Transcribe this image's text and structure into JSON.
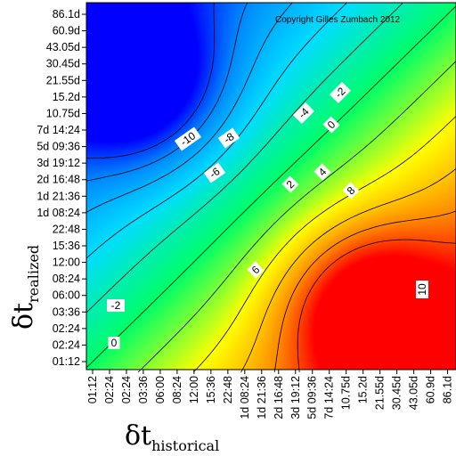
{
  "chart_data": {
    "type": "heatmap",
    "title": "",
    "copyright": "Copyright Gilles Zumbach 2012",
    "xlabel": {
      "symbol": "δt",
      "subscript": "historical"
    },
    "ylabel": {
      "symbol": "δt",
      "subscript": "realized"
    },
    "categories": [
      "01:12",
      "02:24",
      "02:24",
      "03:36",
      "06:00",
      "08:24",
      "12:00",
      "15:36",
      "22:48",
      "1d 08:24",
      "1d 21:36",
      "2d 16:48",
      "3d 19:12",
      "5d 09:36",
      "7d 14:24",
      "10.75d",
      "15.2d",
      "21.55d",
      "30.45d",
      "43.05d",
      "60.9d",
      "86.1d"
    ],
    "x_tick_labels": [
      "01:12",
      "02:24",
      "02:24",
      "03:36",
      "06:00",
      "08:24",
      "12:00",
      "15:36",
      "22:48",
      "1d 08:24",
      "1d 21:36",
      "2d 16:48",
      "3d 19:12",
      "5d 09:36",
      "7d 14:24",
      "10.75d",
      "15.2d",
      "21.55d",
      "30.45d",
      "43.05d",
      "60.9d",
      "86.1d"
    ],
    "y_tick_labels": [
      "01:12",
      "02:24",
      "02:24",
      "03:36",
      "06:00",
      "08:24",
      "12:00",
      "15:36",
      "22:48",
      "1d 08:24",
      "1d 21:36",
      "2d 16:48",
      "3d 19:12",
      "5d 09:36",
      "7d 14:24",
      "10.75d",
      "15.2d",
      "21.55d",
      "30.45d",
      "43.05d",
      "60.9d",
      "86.1d"
    ],
    "value_range": [
      -12,
      12
    ],
    "contour_levels": [
      -10,
      -8,
      -6,
      -4,
      -2,
      0,
      2,
      4,
      6,
      8,
      10
    ],
    "contour_labels": [
      "-10",
      "-8",
      "-6",
      "-4",
      "-2",
      "0",
      "2",
      "4",
      "6",
      "8",
      "10",
      "-2",
      "0",
      "-6"
    ],
    "colormap": [
      "#0000ff",
      "#0088ff",
      "#00ddff",
      "#00ff66",
      "#ffff00",
      "#ff8800",
      "#ff0000"
    ],
    "grid": false,
    "legend": "none"
  }
}
